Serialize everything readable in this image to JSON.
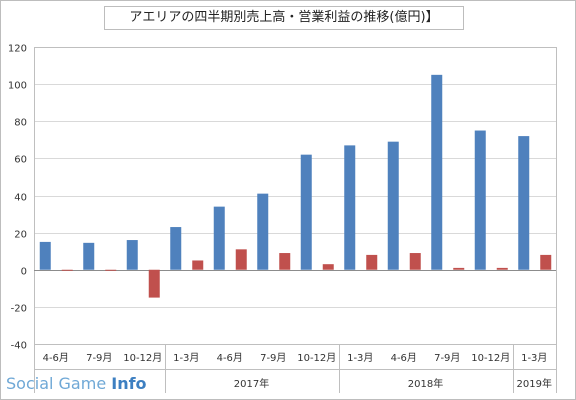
{
  "chart_data": {
    "type": "bar",
    "title": "アエリアの四半期別売上高・営業利益の推移(億円)】",
    "categories": [
      "4-6月",
      "7-9月",
      "10-12月",
      "1-3月",
      "4-6月",
      "7-9月",
      "10-12月",
      "1-3月",
      "4-6月",
      "7-9月",
      "10-12月",
      "1-3月"
    ],
    "year_groups": [
      {
        "label": "",
        "span": 3
      },
      {
        "label": "2017年",
        "span": 4
      },
      {
        "label": "2018年",
        "span": 4
      },
      {
        "label": "2019年",
        "span": 1
      }
    ],
    "series": [
      {
        "values": [
          15,
          14.5,
          16,
          23,
          34,
          41,
          62,
          67,
          69,
          105,
          75,
          72
        ],
        "color": "#4f81bd"
      },
      {
        "values": [
          0,
          -0.5,
          -15,
          5,
          11,
          9,
          3,
          8,
          9,
          1,
          1,
          8
        ],
        "color": "#c0504d"
      }
    ],
    "ylim": [
      -40,
      120
    ],
    "yticks": [
      -40,
      -20,
      0,
      20,
      40,
      60,
      80,
      100,
      120
    ],
    "xlabel": "",
    "ylabel": "",
    "grid": true
  },
  "watermark": {
    "text": "Social Game",
    "bold": "Info"
  }
}
